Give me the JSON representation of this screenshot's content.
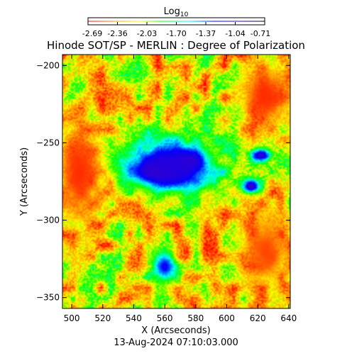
{
  "chart_data": {
    "type": "heatmap",
    "title": "Hinode SOT/SP - MERLIN : Degree of Polarization",
    "subtitle": "13-Aug-2024 07:10:03.000",
    "xlabel": "X (Arcseconds)",
    "ylabel": "Y (Arcseconds)",
    "xlim": [
      494,
      641
    ],
    "ylim": [
      -357,
      -193
    ],
    "x_ticks": [
      500,
      520,
      540,
      560,
      580,
      600,
      620,
      640
    ],
    "y_ticks": [
      -350,
      -300,
      -250,
      -200
    ],
    "colorbar": {
      "label_base": "Log",
      "label_sub": "10",
      "range": [
        -2.69,
        -0.71
      ],
      "ticks": [
        "-2.69",
        "-2.36",
        "-2.03",
        "-1.70",
        "-1.37",
        "-1.04",
        "-0.71"
      ],
      "colormap": [
        "#ff0000",
        "#ff8c00",
        "#ffff00",
        "#00ff00",
        "#00ffff",
        "#0000ff",
        "#3a00c8",
        "#000000"
      ]
    },
    "features": [
      {
        "kind": "sunspot-umbra",
        "center": [
          556,
          -268
        ],
        "radius": [
          22,
          10
        ],
        "value": -0.75
      },
      {
        "kind": "sunspot-umbra",
        "center": [
          575,
          -262
        ],
        "radius": [
          12,
          8
        ],
        "value": -0.8
      },
      {
        "kind": "penumbra",
        "center": [
          565,
          -265
        ],
        "radius": [
          40,
          24
        ],
        "value": -1.1
      },
      {
        "kind": "pore",
        "center": [
          616,
          -278
        ],
        "radius": [
          7,
          6
        ],
        "value": -0.95
      },
      {
        "kind": "pore",
        "center": [
          622,
          -258
        ],
        "radius": [
          8,
          5
        ],
        "value": -1.0
      },
      {
        "kind": "pore",
        "center": [
          560,
          -330
        ],
        "radius": [
          10,
          12
        ],
        "value": -1.25
      },
      {
        "kind": "quiet-sun-low",
        "center": [
          505,
          -270
        ],
        "radius": [
          18,
          40
        ],
        "value": -2.6
      },
      {
        "kind": "quiet-sun-low",
        "center": [
          625,
          -220
        ],
        "radius": [
          20,
          25
        ],
        "value": -2.6
      },
      {
        "kind": "quiet-sun-low",
        "center": [
          625,
          -320
        ],
        "radius": [
          18,
          30
        ],
        "value": -2.55
      }
    ]
  }
}
